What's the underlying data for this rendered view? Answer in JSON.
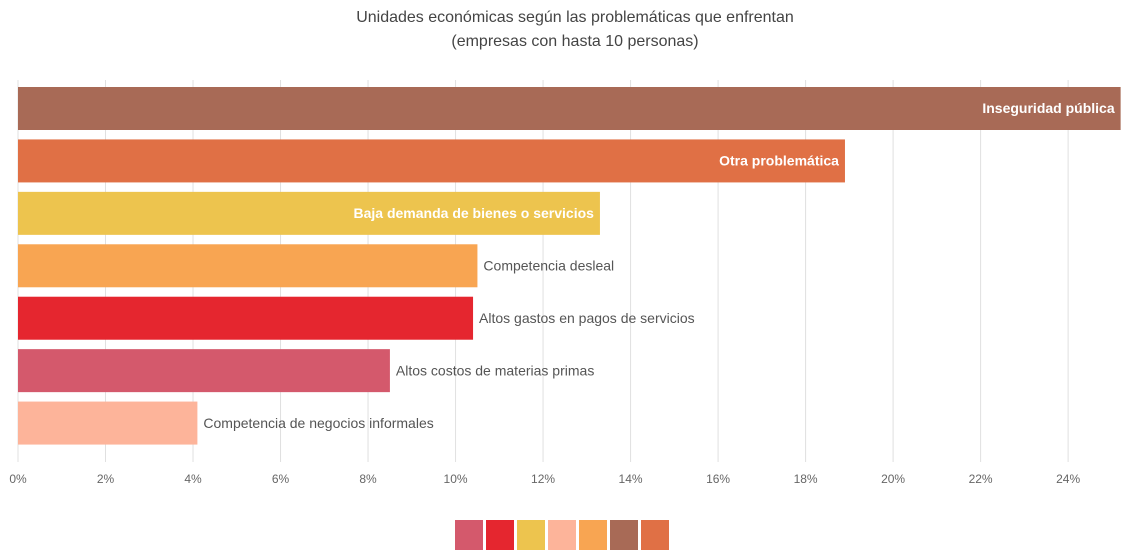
{
  "chart_data": {
    "type": "bar",
    "orientation": "horizontal",
    "title": "Unidades económicas según las problemáticas que enfrentan",
    "subtitle": "(empresas con hasta 10 personas)",
    "categories": [
      "Inseguridad pública",
      "Otra problemática",
      "Baja demanda de bienes o servicios",
      "Competencia desleal",
      "Altos gastos en pagos de servicios",
      "Altos costos de materias primas",
      "Competencia de negocios informales"
    ],
    "values": [
      25.2,
      18.9,
      13.3,
      10.5,
      10.4,
      8.5,
      4.1
    ],
    "colors": [
      "#a86a56",
      "#e07045",
      "#edc44e",
      "#f8a552",
      "#e5262f",
      "#d4596c",
      "#fdb49a"
    ],
    "label_position": [
      "inside",
      "inside",
      "inside",
      "outside",
      "outside",
      "outside",
      "outside"
    ],
    "xlim": [
      0,
      25.3
    ],
    "xticks": [
      {
        "value": 0,
        "label": "0%"
      },
      {
        "value": 2,
        "label": "2%"
      },
      {
        "value": 4,
        "label": "4%"
      },
      {
        "value": 6,
        "label": "6%"
      },
      {
        "value": 8,
        "label": "8%"
      },
      {
        "value": 10,
        "label": "10%"
      },
      {
        "value": 12,
        "label": "12%"
      },
      {
        "value": 14,
        "label": "14%"
      },
      {
        "value": 16,
        "label": "16%"
      },
      {
        "value": 18,
        "label": "18%"
      },
      {
        "value": 20,
        "label": "20%"
      },
      {
        "value": 22,
        "label": "22%"
      },
      {
        "value": 24,
        "label": "24%"
      }
    ],
    "grid": true,
    "legend_colors": [
      "#d4596c",
      "#e5262f",
      "#edc44e",
      "#fdb49a",
      "#f8a552",
      "#a86a56",
      "#e07045"
    ]
  }
}
